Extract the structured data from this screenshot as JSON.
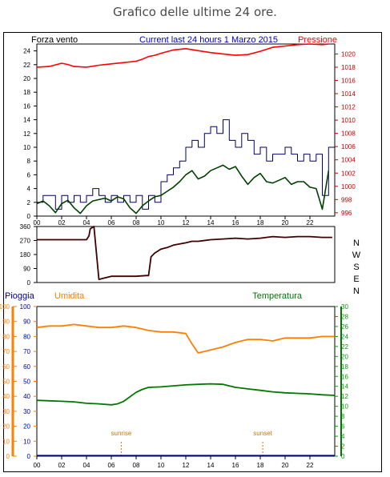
{
  "page": {
    "title": "Grafico delle ultime 24 ore."
  },
  "colors": {
    "frame": "#000000",
    "wind_avg": "#004000",
    "wind_gust": "#000060",
    "pressure": "#ff0000",
    "direction": "#400000",
    "humidity": "#ff8000",
    "temperature": "#007800",
    "rain": "#000080",
    "left_axis_top": "#000000",
    "right_axis_top": "#c00000",
    "left_axis_bottom": "#ff8000",
    "right_axis_bottom": "#00a000",
    "rain_axis": "#000080",
    "sun_marker": "#c87800"
  },
  "chart_data": [
    {
      "id": "wind_pressure",
      "type": "line",
      "title": "Current last 24 hours 1 Marzo 2015",
      "left_label": "Forza vento",
      "right_label": "Pressione",
      "x_ticks": [
        "00",
        "02",
        "04",
        "06",
        "08",
        "10",
        "12",
        "14",
        "16",
        "18",
        "20",
        "22"
      ],
      "ylim_left": [
        0,
        25
      ],
      "yticks_left": [
        0,
        2,
        4,
        6,
        8,
        10,
        12,
        14,
        16,
        18,
        20,
        22,
        24
      ],
      "ylim_right": [
        995.5,
        1021.5
      ],
      "yticks_right": [
        996,
        998,
        1000,
        1002,
        1004,
        1006,
        1008,
        1010,
        1012,
        1014,
        1016,
        1018,
        1020
      ],
      "series": [
        {
          "key": "gust",
          "axis": "left",
          "step": true,
          "x": [
            0,
            0.5,
            1,
            1.5,
            2,
            2.5,
            3,
            3.5,
            4,
            4.5,
            5,
            5.5,
            6,
            6.5,
            7,
            7.5,
            8,
            8.5,
            9,
            9.5,
            10,
            10.5,
            11,
            11.5,
            12,
            12.5,
            13,
            13.5,
            14,
            14.5,
            15,
            15.5,
            16,
            16.5,
            17,
            17.5,
            18,
            18.5,
            19,
            19.5,
            20,
            20.5,
            21,
            21.5,
            22,
            22.5,
            23,
            23.5
          ],
          "values": [
            2,
            3,
            3,
            1,
            3,
            2,
            3,
            2,
            3,
            4,
            3,
            2,
            3,
            2,
            3,
            2,
            3,
            1,
            3,
            2,
            5,
            6,
            7,
            8,
            10,
            11,
            10,
            12,
            13,
            12,
            14,
            11,
            10,
            12,
            11,
            9,
            10,
            8,
            9,
            9,
            10,
            9,
            8,
            9,
            8,
            9,
            3,
            10
          ]
        },
        {
          "key": "avg",
          "axis": "left",
          "x": [
            0,
            0.5,
            1,
            1.5,
            2,
            2.5,
            3,
            3.5,
            4,
            4.5,
            5,
            5.5,
            6,
            6.5,
            7,
            7.5,
            8,
            8.5,
            9,
            9.5,
            10,
            10.5,
            11,
            11.5,
            12,
            12.5,
            13,
            13.5,
            14,
            14.5,
            15,
            15.5,
            16,
            16.5,
            17,
            17.5,
            18,
            18.5,
            19,
            19.5,
            20,
            20.5,
            21,
            21.5,
            22,
            22.5,
            23,
            23.5
          ],
          "values": [
            1.8,
            2.2,
            1.5,
            0.5,
            1.8,
            2.3,
            1.2,
            0.4,
            1.5,
            2.2,
            2.4,
            2.6,
            2.2,
            2.8,
            2.5,
            1.2,
            0.4,
            1.5,
            2.2,
            2.8,
            3.0,
            3.6,
            4.2,
            5.0,
            6.0,
            6.6,
            5.4,
            5.8,
            6.6,
            7.0,
            7.4,
            6.8,
            7.2,
            5.8,
            4.6,
            5.6,
            6.2,
            5.0,
            4.8,
            5.2,
            5.6,
            4.6,
            5.0,
            5.0,
            4.2,
            4.0,
            1.0,
            6.6
          ]
        },
        {
          "key": "pressure",
          "axis": "right",
          "x": [
            0,
            1,
            2,
            2.5,
            3,
            4,
            5,
            6,
            7,
            8,
            8.5,
            9,
            9.5,
            10,
            11,
            12,
            13,
            14,
            14.5,
            15,
            16,
            17,
            18,
            19,
            20,
            21,
            22,
            23,
            23.5
          ],
          "values": [
            1018.0,
            1018.1,
            1018.6,
            1018.4,
            1018.1,
            1018.0,
            1018.3,
            1018.5,
            1018.7,
            1018.9,
            1019.2,
            1019.6,
            1019.8,
            1020.1,
            1020.6,
            1020.8,
            1020.5,
            1020.2,
            1020.1,
            1020.0,
            1019.8,
            1019.9,
            1020.4,
            1021.0,
            1021.2,
            1021.4,
            1021.5,
            1021.4,
            1021.5
          ]
        }
      ]
    },
    {
      "id": "wind_direction",
      "type": "line",
      "ylim": [
        0,
        360
      ],
      "yticks": [
        0,
        90,
        180,
        270,
        360
      ],
      "compass": [
        "N",
        "W",
        "S",
        "E",
        "N"
      ],
      "series": [
        {
          "key": "direction",
          "x": [
            0,
            3.5,
            4,
            4.2,
            4.3,
            4.6,
            5,
            6,
            7,
            8,
            8.8,
            9,
            9.2,
            9.5,
            10,
            10.5,
            11,
            12,
            12.5,
            13,
            14,
            15,
            16,
            17,
            18,
            19,
            20,
            21,
            22,
            23,
            23.8
          ],
          "values": [
            275,
            275,
            275,
            300,
            345,
            360,
            20,
            40,
            40,
            40,
            45,
            45,
            165,
            190,
            215,
            225,
            240,
            255,
            265,
            265,
            275,
            280,
            285,
            280,
            285,
            295,
            290,
            295,
            295,
            290,
            290
          ]
        }
      ]
    },
    {
      "id": "temp_hum_rain",
      "type": "line",
      "left_label": "Pioggia",
      "mid_label": "Umidita",
      "right_label": "Temperatura",
      "ylim_left": [
        0,
        100
      ],
      "yticks_left": [
        0,
        10,
        20,
        30,
        40,
        50,
        60,
        70,
        80,
        90,
        100
      ],
      "ylim_right": [
        0,
        30
      ],
      "yticks_right": [
        0,
        2,
        4,
        6,
        8,
        10,
        12,
        14,
        16,
        18,
        20,
        22,
        24,
        26,
        28,
        30
      ],
      "x_ticks": [
        "00",
        "02",
        "04",
        "06",
        "08",
        "10",
        "12",
        "14",
        "16",
        "18",
        "20",
        "22"
      ],
      "markers": [
        {
          "label": "sunrise",
          "x": 6.8
        },
        {
          "label": "sunset",
          "x": 18.2
        }
      ],
      "series": [
        {
          "key": "humidity",
          "axis": "left",
          "x": [
            0,
            1,
            2,
            3,
            4,
            5,
            6,
            7,
            8,
            9,
            10,
            11,
            12,
            12.5,
            13,
            13.5,
            14,
            15,
            16,
            17,
            18,
            19,
            20,
            21,
            22,
            23,
            24
          ],
          "values": [
            86,
            87,
            87,
            88,
            87,
            86,
            86,
            87,
            86,
            84,
            83,
            83,
            82,
            75,
            69,
            70,
            71,
            73,
            76,
            78,
            78,
            77,
            79,
            79,
            79,
            80,
            80
          ]
        },
        {
          "key": "temperature",
          "axis": "right",
          "x": [
            0,
            1,
            2,
            3,
            4,
            5,
            6,
            6.5,
            7,
            8,
            8.5,
            9,
            10,
            11,
            12,
            13,
            14,
            15,
            16,
            17,
            18,
            19,
            20,
            21,
            22,
            23,
            24
          ],
          "values": [
            11.2,
            11.1,
            11.0,
            10.9,
            10.6,
            10.5,
            10.3,
            10.5,
            11.0,
            12.8,
            13.4,
            13.8,
            13.9,
            14.1,
            14.3,
            14.4,
            14.5,
            14.4,
            13.8,
            13.5,
            13.2,
            12.9,
            12.7,
            12.6,
            12.5,
            12.3,
            12.2
          ]
        },
        {
          "key": "rain",
          "axis": "rain",
          "x": [
            0,
            24
          ],
          "values": [
            0.3,
            0.3
          ]
        }
      ]
    }
  ]
}
